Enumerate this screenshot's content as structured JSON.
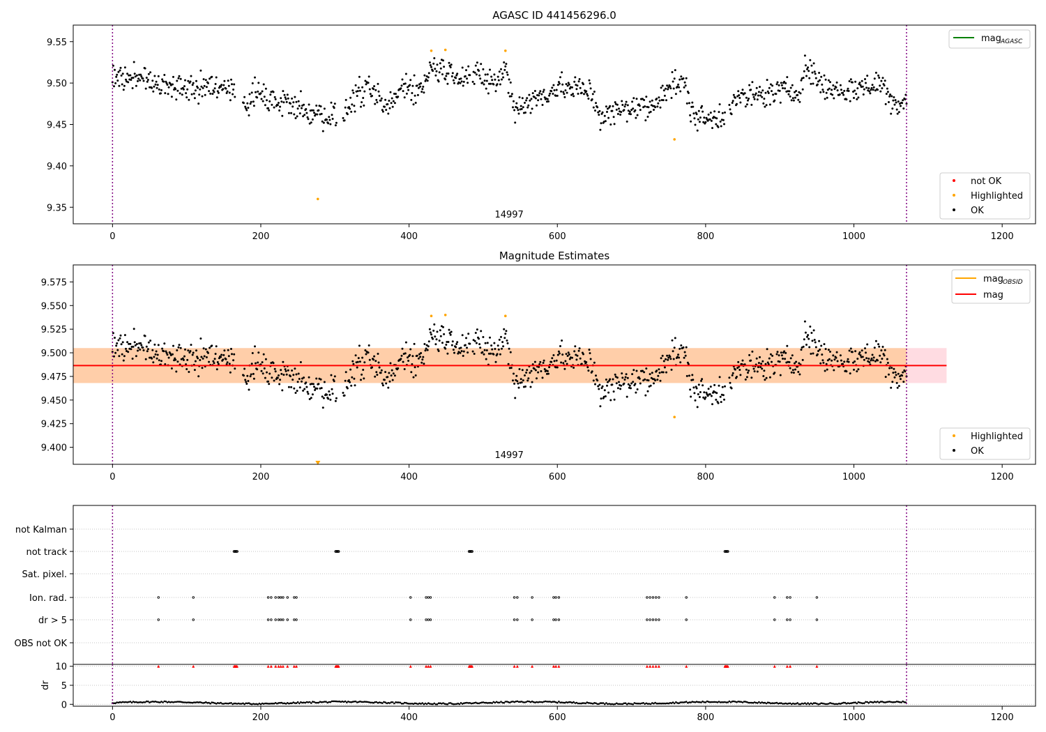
{
  "chart_data": [
    {
      "type": "scatter",
      "title": "AGASC ID 441456296.0",
      "annotation": "14997",
      "xlim": [
        -53,
        1245
      ],
      "ylim": [
        9.33,
        9.57
      ],
      "xticks": [
        "0",
        "200",
        "400",
        "600",
        "800",
        "1000",
        "1200"
      ],
      "yticks": [
        "9.35",
        "9.40",
        "9.45",
        "9.50",
        "9.55"
      ],
      "vlines": [
        0,
        1071
      ],
      "legend_lines": [
        {
          "label": "mag",
          "sub": "AGASC",
          "color": "#008000"
        }
      ],
      "legend_markers": [
        {
          "label": "not OK",
          "color": "#ff0000"
        },
        {
          "label": "Highlighted",
          "color": "#ffa500"
        },
        {
          "label": "OK",
          "color": "#000000"
        }
      ],
      "highlighted": [
        [
          430,
          9.539
        ],
        [
          449,
          9.54
        ],
        [
          530,
          9.539
        ],
        [
          277,
          9.36
        ],
        [
          758,
          9.432
        ]
      ],
      "ok_trend": [
        [
          0,
          9.505
        ],
        [
          30,
          9.505
        ],
        [
          60,
          9.5
        ],
        [
          100,
          9.495
        ],
        [
          165,
          9.492
        ],
        [
          180,
          9.47
        ],
        [
          190,
          9.49
        ],
        [
          215,
          9.478
        ],
        [
          240,
          9.468
        ],
        [
          265,
          9.47
        ],
        [
          290,
          9.46
        ],
        [
          310,
          9.458
        ],
        [
          330,
          9.488
        ],
        [
          350,
          9.49
        ],
        [
          370,
          9.468
        ],
        [
          395,
          9.5
        ],
        [
          415,
          9.49
        ],
        [
          430,
          9.52
        ],
        [
          470,
          9.51
        ],
        [
          490,
          9.508
        ],
        [
          520,
          9.5
        ],
        [
          530,
          9.52
        ],
        [
          542,
          9.47
        ],
        [
          570,
          9.48
        ],
        [
          600,
          9.495
        ],
        [
          620,
          9.493
        ],
        [
          645,
          9.49
        ],
        [
          660,
          9.458
        ],
        [
          700,
          9.472
        ],
        [
          730,
          9.47
        ],
        [
          740,
          9.49
        ],
        [
          760,
          9.5
        ],
        [
          775,
          9.495
        ],
        [
          780,
          9.465
        ],
        [
          800,
          9.455
        ],
        [
          820,
          9.46
        ],
        [
          840,
          9.48
        ],
        [
          870,
          9.485
        ],
        [
          900,
          9.49
        ],
        [
          925,
          9.49
        ],
        [
          935,
          9.52
        ],
        [
          960,
          9.495
        ],
        [
          990,
          9.49
        ],
        [
          1010,
          9.495
        ],
        [
          1040,
          9.5
        ],
        [
          1050,
          9.475
        ],
        [
          1071,
          9.48
        ]
      ]
    },
    {
      "type": "scatter",
      "title": "Magnitude Estimates",
      "annotation": "14997",
      "xlim": [
        -53,
        1245
      ],
      "ylim": [
        9.382,
        9.593
      ],
      "xticks": [
        "0",
        "200",
        "400",
        "600",
        "800",
        "1000",
        "1200"
      ],
      "yticks": [
        "9.400",
        "9.425",
        "9.450",
        "9.475",
        "9.500",
        "9.525",
        "9.550",
        "9.575"
      ],
      "vlines": [
        0,
        1071
      ],
      "mag_line": {
        "value": 9.4865,
        "x": [
          -53,
          1125
        ],
        "color": "#ff0000"
      },
      "band_pink": {
        "y": [
          9.468,
          9.505
        ],
        "x": [
          -53,
          1125
        ]
      },
      "band_orange": {
        "y": [
          9.468,
          9.505
        ],
        "x": [
          -53,
          1071
        ]
      },
      "legend_lines": [
        {
          "label": "mag",
          "sub": "OBSID",
          "color": "#ffa500"
        },
        {
          "label": "mag",
          "sub": "",
          "color": "#ff0000"
        }
      ],
      "legend_markers": [
        {
          "label": "Highlighted",
          "color": "#ffa500"
        },
        {
          "label": "OK",
          "color": "#000000"
        }
      ],
      "highlighted": [
        [
          430,
          9.539
        ],
        [
          449,
          9.54
        ],
        [
          530,
          9.539
        ],
        [
          758,
          9.432
        ]
      ],
      "offscale_marker": [
        277,
        9.382
      ],
      "ok_trend": "same as top panel"
    },
    {
      "type": "scatter",
      "xlim": [
        -53,
        1245
      ],
      "xticks": [
        "0",
        "200",
        "400",
        "600",
        "800",
        "1000",
        "1200"
      ],
      "vlines": [
        0,
        1071
      ],
      "flag_rows": [
        "not Kalman",
        "not track",
        "Sat. pixel.",
        "Ion. rad.",
        "dr > 5",
        "OBS not OK"
      ],
      "not_track": [
        164,
        165,
        166,
        167,
        168,
        301,
        302,
        303,
        304,
        305,
        481,
        482,
        483,
        484,
        485,
        826,
        827,
        828,
        829,
        830
      ],
      "ion_rad": [
        62,
        109,
        210,
        214,
        220,
        224,
        227,
        230,
        236,
        245,
        248,
        402,
        423,
        426,
        429,
        542,
        546,
        566,
        595,
        598,
        602,
        721,
        725,
        729,
        733,
        737,
        774,
        893,
        910,
        914,
        950
      ],
      "dr_gt_5": [
        62,
        109,
        210,
        214,
        220,
        224,
        227,
        230,
        236,
        245,
        248,
        402,
        423,
        426,
        429,
        542,
        546,
        566,
        595,
        598,
        602,
        721,
        725,
        729,
        733,
        737,
        774,
        893,
        910,
        914,
        950
      ],
      "dr": {
        "ylabel": "dr",
        "ylim": [
          -0.5,
          10.5
        ],
        "yticks": [
          "0",
          "5",
          "10"
        ],
        "clipped_value": 10,
        "typical_value": 0.4
      }
    }
  ]
}
